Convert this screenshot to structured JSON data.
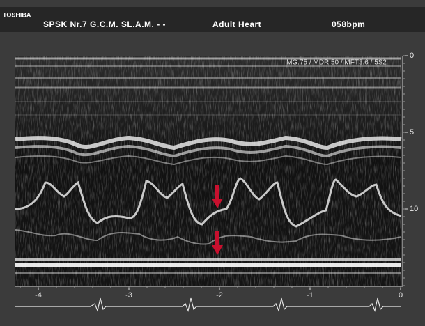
{
  "header": {
    "brand": "TOSHIBA",
    "preset": "SPSK Nr.7 G.C.M. SL.A.M.  - -",
    "application": "Adult Heart",
    "heart_rate": "058bpm"
  },
  "image": {
    "settings": "MG:75   / MDR:50 / MFT3.6    / 5S2",
    "depth_ticks": [
      0,
      5,
      10
    ],
    "time_ticks": [
      -4,
      -3,
      -2,
      -1,
      0
    ]
  }
}
